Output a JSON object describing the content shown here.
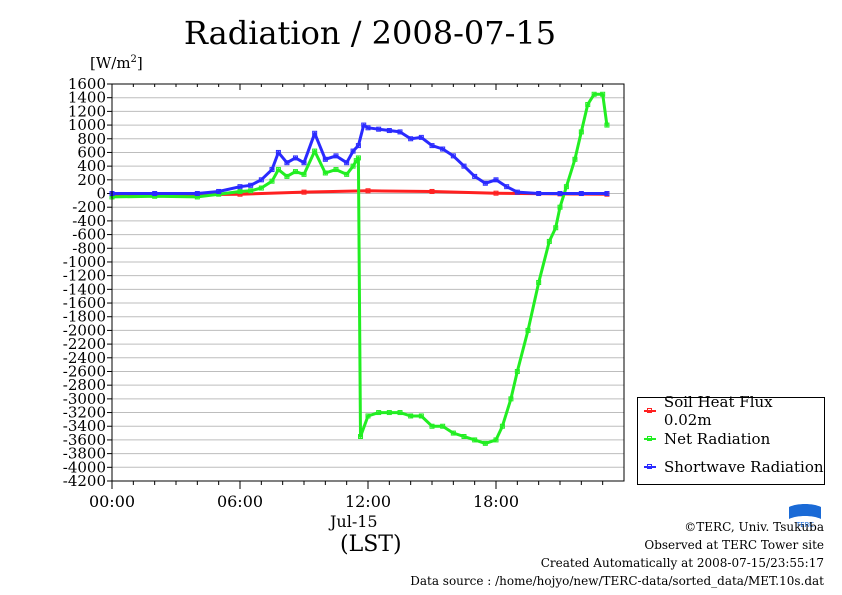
{
  "chart_data": {
    "type": "line",
    "title": "Radiation / 2008-07-15",
    "ylabel_prefix": "[W/m",
    "ylabel_sup": "2",
    "ylabel_suffix": "]",
    "xlabel": "(LST)",
    "date_label": "Jul-15",
    "xlim": [
      0,
      24
    ],
    "ylim": [
      -4200,
      1600
    ],
    "x_ticks": [
      {
        "value": 0,
        "label": "00:00"
      },
      {
        "value": 6,
        "label": "06:00"
      },
      {
        "value": 12,
        "label": "12:00"
      },
      {
        "value": 18,
        "label": "18:00"
      }
    ],
    "y_ticks": [
      1600,
      1400,
      1200,
      1000,
      800,
      600,
      400,
      200,
      0,
      -200,
      -400,
      -600,
      -800,
      -1000,
      -1200,
      -1400,
      -1600,
      -1800,
      -2000,
      -2200,
      -2400,
      -2600,
      -2800,
      -3000,
      -3200,
      -3400,
      -3600,
      -3800,
      -4000,
      -4200
    ],
    "grid": true,
    "legend_position": "bottom-right",
    "series": [
      {
        "name": "Soil Heat Flux 0.02m",
        "color": "#ff2020",
        "x": [
          0,
          3,
          6,
          9,
          12,
          15,
          18,
          21,
          23.2
        ],
        "y": [
          -10,
          -20,
          -10,
          20,
          40,
          30,
          5,
          -5,
          -10
        ]
      },
      {
        "name": "Net Radiation",
        "color": "#22ee22",
        "x": [
          0,
          2,
          4,
          5,
          6,
          6.5,
          7,
          7.5,
          7.8,
          8.2,
          8.6,
          9,
          9.5,
          10,
          10.5,
          11,
          11.3,
          11.45,
          11.55,
          11.65,
          12,
          12.5,
          13,
          13.5,
          14,
          14.5,
          15,
          15.5,
          16,
          16.5,
          17,
          17.5,
          18,
          18.3,
          18.7,
          19,
          19.5,
          20,
          20.5,
          20.8,
          21,
          21.3,
          21.7,
          22,
          22.3,
          22.6,
          23,
          23.2
        ],
        "y": [
          -50,
          -40,
          -50,
          -10,
          30,
          40,
          80,
          180,
          350,
          250,
          320,
          280,
          620,
          300,
          350,
          280,
          400,
          480,
          520,
          -3550,
          -3250,
          -3200,
          -3200,
          -3200,
          -3250,
          -3250,
          -3400,
          -3400,
          -3500,
          -3550,
          -3600,
          -3650,
          -3600,
          -3400,
          -3000,
          -2600,
          -2000,
          -1300,
          -700,
          -500,
          -200,
          100,
          500,
          900,
          1300,
          1450,
          1450,
          1000
        ]
      },
      {
        "name": "Shortwave Radiation",
        "color": "#2a2aff",
        "x": [
          0,
          2,
          4,
          5,
          6,
          6.5,
          7,
          7.5,
          7.8,
          8.2,
          8.6,
          9,
          9.5,
          10,
          10.5,
          11,
          11.3,
          11.55,
          11.8,
          12,
          12.5,
          13,
          13.5,
          14,
          14.5,
          15,
          15.5,
          16,
          16.5,
          17,
          17.5,
          18,
          18.5,
          19,
          20,
          21,
          22,
          23.2
        ],
        "y": [
          0,
          0,
          0,
          30,
          100,
          120,
          200,
          350,
          600,
          450,
          520,
          450,
          880,
          500,
          550,
          450,
          620,
          700,
          1000,
          960,
          940,
          920,
          900,
          800,
          820,
          700,
          650,
          550,
          400,
          250,
          150,
          200,
          100,
          20,
          0,
          0,
          0,
          0
        ]
      }
    ]
  },
  "footer": {
    "copyright": "©TERC, Univ. Tsukuba",
    "observed": "Observed at TERC Tower site",
    "created": "Created Automatically at 2008-07-15/23:55:17",
    "source": "Data source : /home/hojyo/new/TERC-data/sorted_data/MET.10s.dat",
    "logo_text": "TERC",
    "logo_color": "#1a6ad6"
  }
}
